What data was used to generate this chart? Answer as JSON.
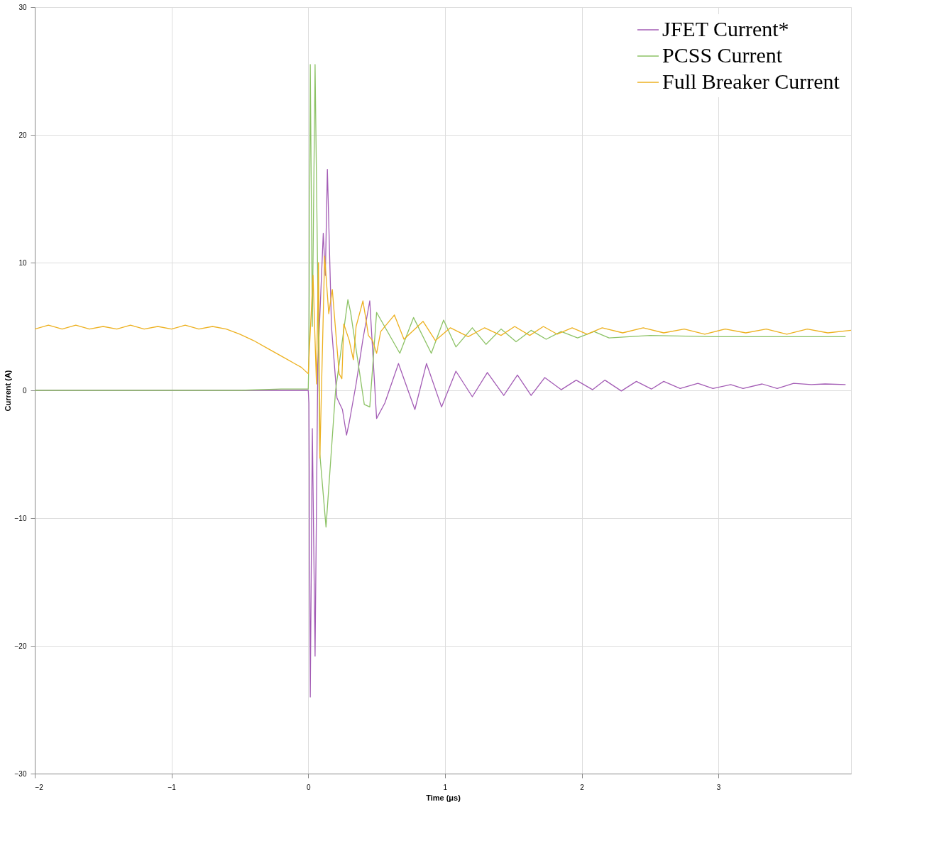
{
  "chart_data": {
    "type": "line",
    "xlabel": "Time (μs)",
    "ylabel": "Current (A)",
    "xlim": [
      -2,
      3.97
    ],
    "xticks": [
      -2,
      -1,
      0,
      1,
      2,
      3
    ],
    "ylim": [
      -30,
      30
    ],
    "yticks": [
      -30,
      -20,
      -10,
      0,
      10,
      20,
      30
    ],
    "grid": true,
    "legend": "top right",
    "line_style": "solid",
    "marker": "none",
    "series": [
      {
        "name": "JFET Current*",
        "color": "#a35cb5",
        "x": [
          -2,
          -0.5,
          0,
          0.005,
          0.015,
          0.03,
          0.05,
          0.07,
          0.11,
          0.125,
          0.14,
          0.17,
          0.21,
          0.25,
          0.28,
          0.3,
          0.35,
          0.4,
          0.45,
          0.5,
          0.56,
          0.66,
          0.78,
          0.865,
          0.975,
          1.08,
          1.2,
          1.31,
          1.43,
          1.53,
          1.63,
          1.73,
          1.85,
          1.96,
          2.08,
          2.17,
          2.29,
          2.4,
          2.51,
          2.6,
          2.72,
          2.85,
          2.96,
          3.09,
          3.18,
          3.32,
          3.43,
          3.55,
          3.68,
          3.78,
          3.93
        ],
        "values": [
          0,
          0,
          0,
          -1,
          -24,
          -3,
          -20.8,
          2,
          12.3,
          9,
          17.3,
          5,
          -0.6,
          -1.5,
          -3.5,
          -2.5,
          0.5,
          4,
          7,
          -2.2,
          -1,
          2.1,
          -1.5,
          2.1,
          -1.3,
          1.5,
          -0.5,
          1.4,
          -0.4,
          1.2,
          -0.4,
          1.0,
          0.05,
          0.8,
          0.05,
          0.8,
          -0.05,
          0.7,
          0.1,
          0.7,
          0.15,
          0.55,
          0.15,
          0.45,
          0.15,
          0.5,
          0.15,
          0.55,
          0.45,
          0.5,
          0.45
        ]
      },
      {
        "name": "PCSS Current",
        "color": "#8cc265",
        "x": [
          -2,
          -1,
          -0.5,
          -0.2,
          0,
          0.005,
          0.015,
          0.03,
          0.05,
          0.085,
          0.13,
          0.2,
          0.29,
          0.31,
          0.41,
          0.45,
          0.5,
          0.67,
          0.77,
          0.9,
          0.99,
          1.08,
          1.2,
          1.3,
          1.41,
          1.52,
          1.63,
          1.74,
          1.85,
          1.97,
          2.09,
          2.2,
          2.5,
          2.96,
          3.5,
          3.93
        ],
        "values": [
          0,
          0,
          0,
          0.1,
          0.1,
          2.7,
          25.5,
          5,
          25.5,
          -5,
          -10.7,
          0,
          7.1,
          6.1,
          -1.1,
          -1.3,
          6.1,
          2.9,
          5.7,
          2.9,
          5.5,
          3.4,
          4.9,
          3.6,
          4.8,
          3.8,
          4.7,
          4.0,
          4.6,
          4.1,
          4.6,
          4.1,
          4.3,
          4.2,
          4.2,
          4.2
        ]
      },
      {
        "name": "Full Breaker Current",
        "color": "#edb120",
        "x": [
          -2,
          -1.9,
          -1.8,
          -1.7,
          -1.6,
          -1.5,
          -1.4,
          -1.3,
          -1.2,
          -1.1,
          -1.0,
          -0.9,
          -0.8,
          -0.7,
          -0.6,
          -0.5,
          -0.4,
          -0.3,
          -0.2,
          -0.1,
          -0.05,
          0,
          0.035,
          0.06,
          0.075,
          0.085,
          0.12,
          0.15,
          0.176,
          0.185,
          0.226,
          0.246,
          0.26,
          0.3,
          0.33,
          0.35,
          0.4,
          0.42,
          0.44,
          0.47,
          0.5,
          0.53,
          0.63,
          0.7,
          0.76,
          0.84,
          0.93,
          1.04,
          1.17,
          1.29,
          1.41,
          1.51,
          1.62,
          1.72,
          1.82,
          1.93,
          2.04,
          2.15,
          2.3,
          2.45,
          2.6,
          2.75,
          2.9,
          3.05,
          3.2,
          3.35,
          3.5,
          3.65,
          3.8,
          3.97
        ],
        "values": [
          4.8,
          5.1,
          4.8,
          5.1,
          4.8,
          5.0,
          4.8,
          5.1,
          4.8,
          5.0,
          4.8,
          5.1,
          4.8,
          5.0,
          4.8,
          4.4,
          3.9,
          3.3,
          2.7,
          2.1,
          1.8,
          1.3,
          9.0,
          0.5,
          10,
          -5.3,
          10.5,
          6,
          7.9,
          6.7,
          1.3,
          0.9,
          5.2,
          3.9,
          2.4,
          5.0,
          7.0,
          5.7,
          4.3,
          3.9,
          2.9,
          4.6,
          5.9,
          4.0,
          4.6,
          5.4,
          3.9,
          4.9,
          4.2,
          4.9,
          4.3,
          5.0,
          4.3,
          5.0,
          4.4,
          4.9,
          4.4,
          4.9,
          4.5,
          4.9,
          4.5,
          4.8,
          4.4,
          4.8,
          4.5,
          4.8,
          4.4,
          4.8,
          4.5,
          4.7
        ]
      }
    ]
  }
}
